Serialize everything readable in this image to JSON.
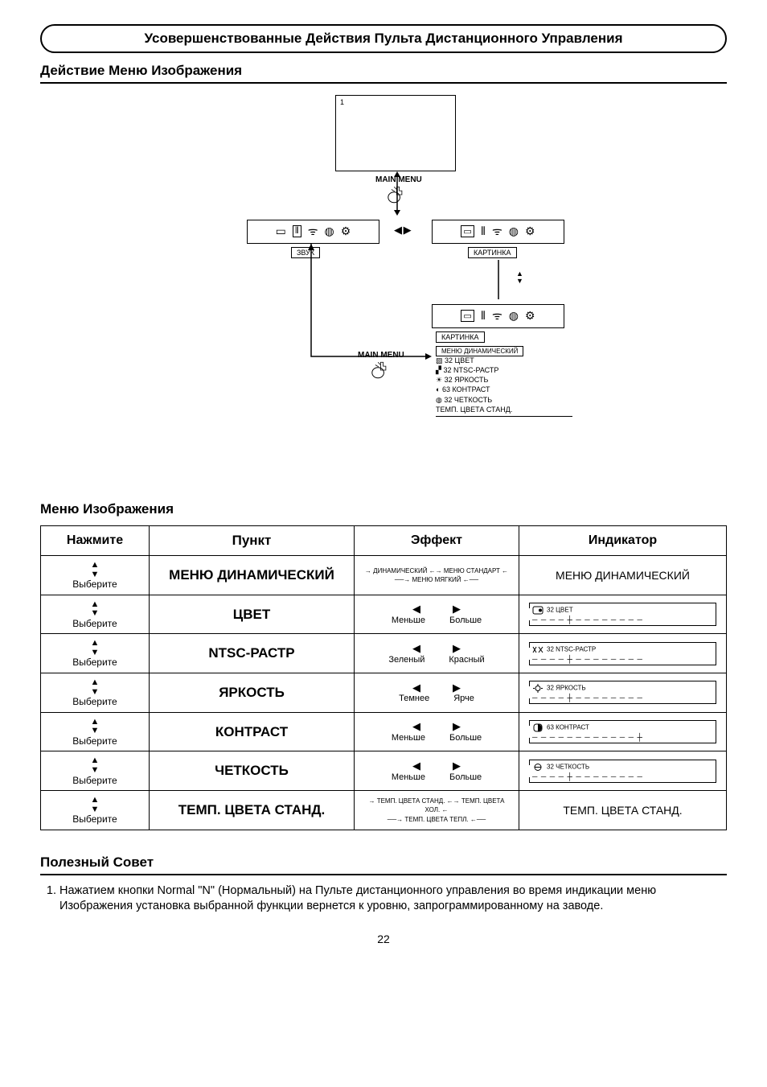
{
  "banner": "Усовершенствованные Действия Пульта Дистанционного Управления",
  "section1": "Действие Меню Изображения",
  "diagram": {
    "screen1_label": "1",
    "main_menu": "MAIN MENU",
    "sound_box_label": "ЗВУК",
    "picture_box_label": "КАРТИНКА",
    "menu_header": "МЕНЮ  ДИНАМИЧЕСКИЙ",
    "rows": [
      "32  ЦВЕТ",
      "32  NTSC-РАСТР",
      "32  ЯРКОСТЬ",
      "63  КОНТРАСТ",
      "32  ЧЕТКОСТЬ",
      "ТЕМП. ЦВЕТА СТАНД."
    ]
  },
  "section2": "Меню Изображения",
  "table": {
    "headers": [
      "Нажмите",
      "Пункт",
      "Эффект",
      "Индикатор"
    ],
    "select_label": "Выберите",
    "rows": [
      {
        "item": "МЕНЮ ДИНАМИЧЕСКИЙ",
        "cycle": [
          "ДИНАМИЧЕСКИЙ",
          "МЕНЮ СТАНДАРТ",
          "МЕНЮ МЯГКИЙ"
        ],
        "indicator_text": "МЕНЮ ДИНАМИЧЕСКИЙ"
      },
      {
        "item": "ЦВЕТ",
        "less": "Меньше",
        "more": "Больше",
        "ind_label": "32 ЦВЕТ"
      },
      {
        "item": "NTSC-РАСТР",
        "less": "Зеленый",
        "more": "Красный",
        "ind_label": "32 NTSC-РАСТР"
      },
      {
        "item": "ЯРКОСТЬ",
        "less": "Темнее",
        "more": "Ярче",
        "ind_label": "32 ЯРКОСТЬ"
      },
      {
        "item": "КОНТРАСТ",
        "less": "Меньше",
        "more": "Больше",
        "ind_label": "63 КОНТРАСТ"
      },
      {
        "item": "ЧЕТКОСТЬ",
        "less": "Меньше",
        "more": "Больше",
        "ind_label": "32 ЧЕТКОСТЬ"
      },
      {
        "item": "ТЕМП. ЦВЕТА СТАНД.",
        "cycle": [
          "ТЕМП. ЦВЕТА СТАНД.",
          "ТЕМП. ЦВЕТА ХОЛ.",
          "ТЕМП. ЦВЕТА ТЕПЛ."
        ],
        "indicator_text": "ТЕМП. ЦВЕТА СТАНД."
      }
    ]
  },
  "tip_title": "Полезный Совет",
  "tip_text": "Нажатием кнопки Normal \"N\" (Нормальный) на Пульте дистанционного управления во время индикации меню Изображения установка выбранной функции вернется к уровню, запрограммированному на заводе.",
  "page": "22"
}
